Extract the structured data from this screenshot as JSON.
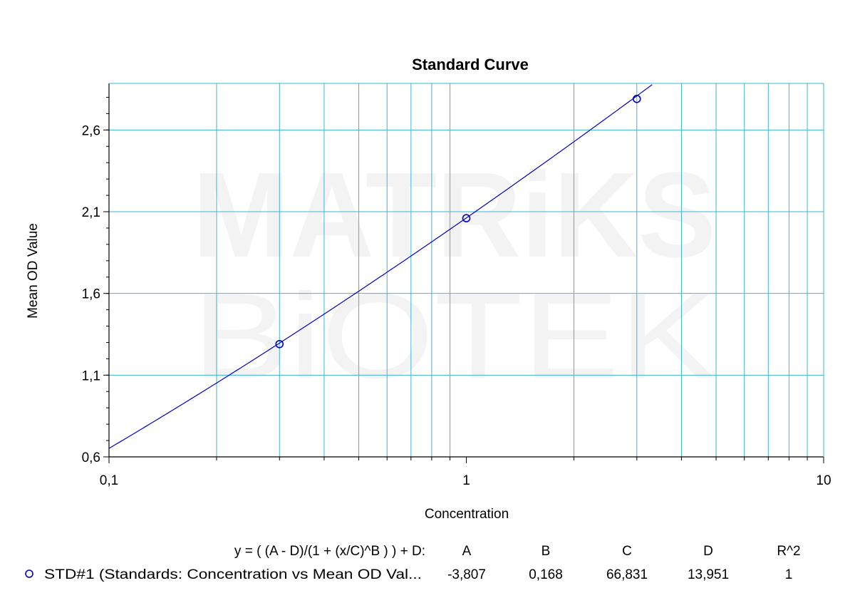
{
  "chart_data": {
    "type": "line",
    "title": "Standard Curve",
    "xlabel": "Concentration",
    "ylabel": "Mean OD Value",
    "xscale": "log",
    "xlim": [
      0.1,
      10
    ],
    "ylim": [
      0.6,
      2.885
    ],
    "x_ticks": [
      0.1,
      1,
      10
    ],
    "x_tick_labels": [
      "0,1",
      "1",
      "10"
    ],
    "y_ticks": [
      0.6,
      1.1,
      1.6,
      2.1,
      2.6
    ],
    "y_tick_labels": [
      "0,6",
      "1,1",
      "1,6",
      "2,1",
      "2,6"
    ],
    "grid": true,
    "grid_color": "#3cb4dc",
    "series": [
      {
        "name": "STD#1 (Standards: Concentration vs Mean OD Val...",
        "color": "#0000cc",
        "marker": "circle",
        "points": [
          {
            "x": 0.3,
            "y": 1.29
          },
          {
            "x": 1,
            "y": 2.06
          },
          {
            "x": 3,
            "y": 2.79
          }
        ],
        "fit": {
          "model": "4PL",
          "equation": "y = ( (A - D)/(1 + (x/C)^B ) ) + D:",
          "A": -3.807,
          "B": 0.168,
          "C": 66.831,
          "D": 13.951
        }
      }
    ],
    "legend": {
      "placement": "bottom",
      "equation": "y = ( (A - D)/(1 + (x/C)^B ) ) + D:",
      "headers": [
        "A",
        "B",
        "C",
        "D",
        "R^2"
      ],
      "row_label": "STD#1 (Standards: Concentration vs Mean OD Val...",
      "row_values": [
        "-3,807",
        "0,168",
        "66,831",
        "13,951",
        "1"
      ]
    },
    "watermark": [
      "MATRiKS",
      "BiOTEK"
    ]
  }
}
